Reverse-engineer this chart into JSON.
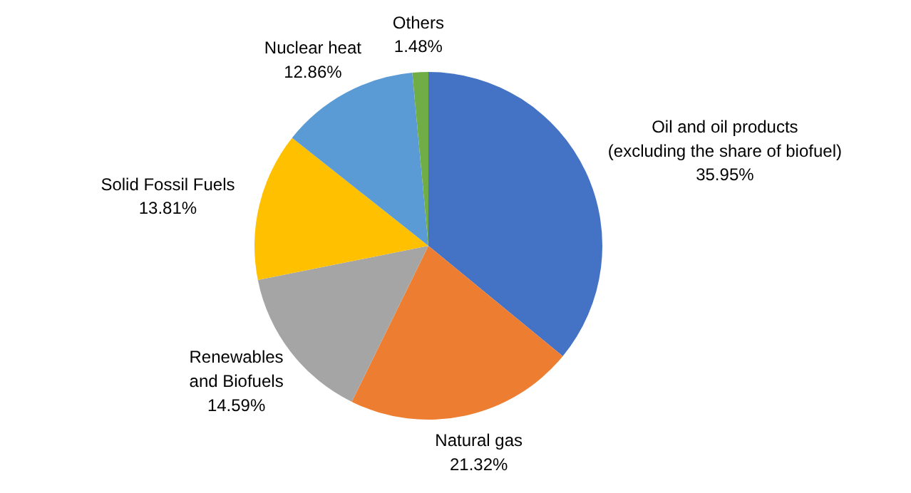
{
  "chart_data": {
    "type": "pie",
    "categories": [
      "Oil and oil products\n(excluding the share of biofuel)",
      "Natural gas",
      "Renewables\nand Biofuels",
      "Solid Fossil Fuels",
      "Nuclear heat",
      "Others"
    ],
    "values": [
      35.95,
      21.32,
      14.59,
      13.81,
      12.86,
      1.48
    ],
    "colors": [
      "#4472c4",
      "#ed7d31",
      "#a5a5a5",
      "#ffc000",
      "#5b9bd5",
      "#70ad47"
    ],
    "value_labels": [
      "35.95%",
      "21.32%",
      "14.59%",
      "13.81%",
      "12.86%",
      "1.48%"
    ]
  }
}
